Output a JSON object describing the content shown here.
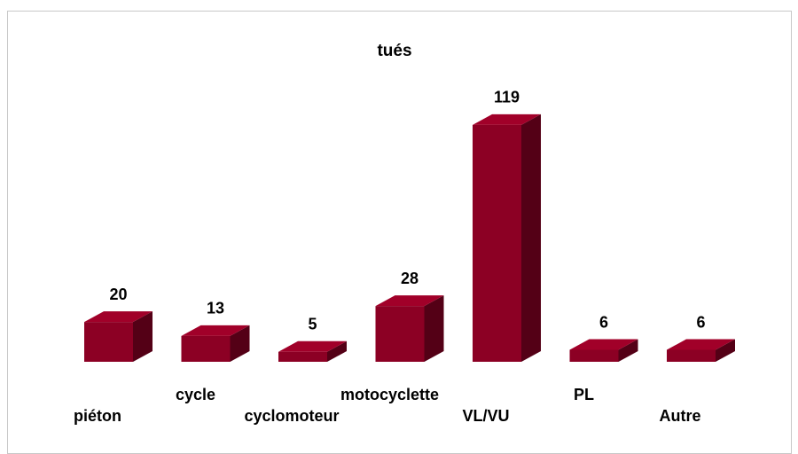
{
  "chart_data": {
    "type": "bar3d",
    "title": "tués",
    "categories": [
      "piéton",
      "cycle",
      "cyclomoteur",
      "motocyclette",
      "VL/VU",
      "PL",
      "Autre"
    ],
    "values": [
      20,
      13,
      5,
      28,
      119,
      6,
      6
    ],
    "color": "#8c0024"
  }
}
